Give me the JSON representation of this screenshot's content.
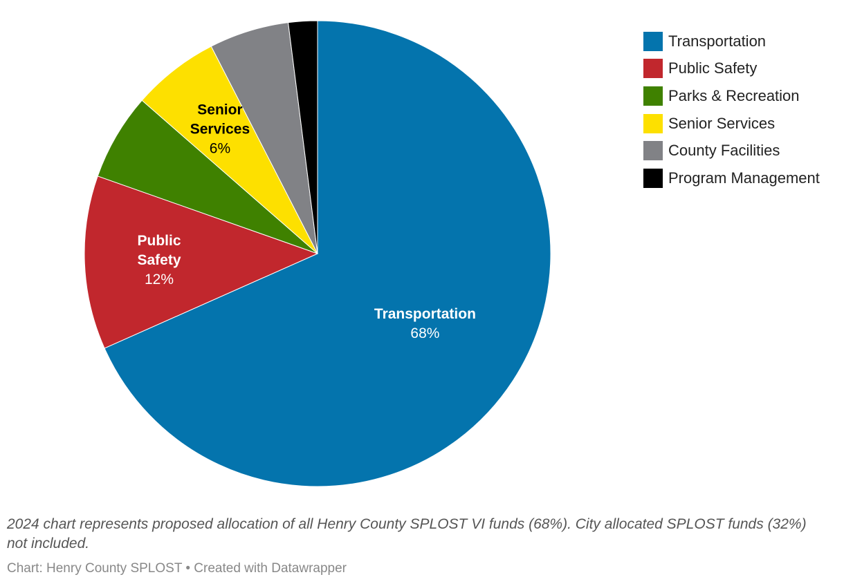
{
  "chart_data": {
    "type": "pie",
    "categories": [
      "Transportation",
      "Public Safety",
      "Parks & Recreation",
      "Senior Services",
      "County Facilities",
      "Program Management"
    ],
    "values": [
      68,
      12,
      6,
      6,
      5.5,
      2
    ],
    "colors": [
      "#0474ad",
      "#c1272d",
      "#3f8100",
      "#fde000",
      "#818286",
      "#000000"
    ],
    "slice_labels": [
      {
        "name_lines": [
          "Transportation"
        ],
        "pct": "68%",
        "color": "#ffffff"
      },
      {
        "name_lines": [
          "Public",
          "Safety"
        ],
        "pct": "12%",
        "color": "#ffffff"
      },
      null,
      {
        "name_lines": [
          "Senior",
          "Services"
        ],
        "pct": "6%",
        "color": "#000000"
      },
      null,
      null
    ],
    "legend_position": "top-right",
    "notes": "2024 chart represents proposed allocation of all Henry County SPLOST VI funds (68%). City allocated SPLOST funds (32%) not included.",
    "source": "Chart: Henry County SPLOST • Created with Datawrapper"
  }
}
